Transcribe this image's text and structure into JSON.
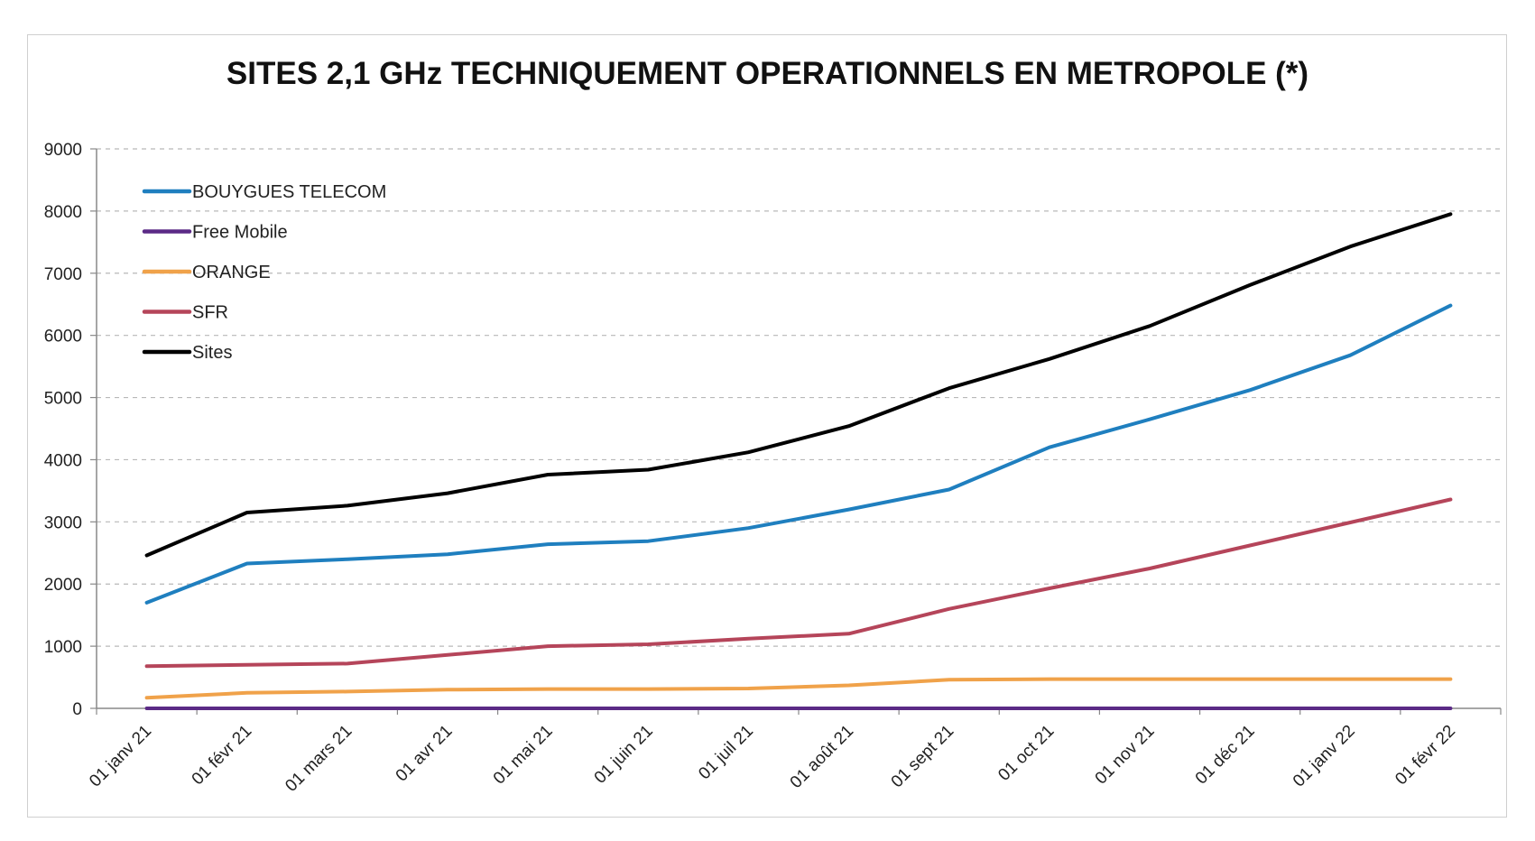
{
  "chart_data": {
    "type": "line",
    "title": "SITES 2,1 GHz TECHNIQUEMENT OPERATIONNELS EN METROPOLE (*)",
    "xlabel": "",
    "ylabel": "",
    "ylim": [
      0,
      9000
    ],
    "yticks": [
      0,
      1000,
      2000,
      3000,
      4000,
      5000,
      6000,
      7000,
      8000,
      9000
    ],
    "grid": true,
    "legend_position": "top-left",
    "categories": [
      "01 janv 21",
      "01 févr 21",
      "01 mars 21",
      "01 avr 21",
      "01 mai 21",
      "01 juin 21",
      "01 juil 21",
      "01 août 21",
      "01 sept 21",
      "01 oct 21",
      "01 nov 21",
      "01 déc 21",
      "01 janv 22",
      "01 févr 22"
    ],
    "series": [
      {
        "name": "BOUYGUES TELECOM",
        "color": "#1f7fbf",
        "values": [
          1700,
          2330,
          2400,
          2480,
          2640,
          2690,
          2900,
          3200,
          3520,
          4200,
          4650,
          5120,
          5680,
          6480
        ]
      },
      {
        "name": "Free Mobile",
        "color": "#5b2a86",
        "values": [
          0,
          0,
          0,
          0,
          0,
          0,
          0,
          0,
          0,
          0,
          0,
          0,
          0,
          0
        ]
      },
      {
        "name": "ORANGE",
        "color": "#f0a24a",
        "values": [
          170,
          250,
          270,
          300,
          310,
          310,
          320,
          370,
          460,
          470,
          470,
          470,
          470,
          470
        ]
      },
      {
        "name": "SFR",
        "color": "#b5455a",
        "values": [
          680,
          700,
          720,
          860,
          1000,
          1030,
          1120,
          1200,
          1600,
          1930,
          2250,
          2620,
          2990,
          3360
        ]
      },
      {
        "name": "Sites",
        "color": "#000000",
        "values": [
          2460,
          3150,
          3260,
          3460,
          3760,
          3840,
          4120,
          4540,
          5150,
          5620,
          6150,
          6810,
          7430,
          7950
        ]
      }
    ]
  }
}
